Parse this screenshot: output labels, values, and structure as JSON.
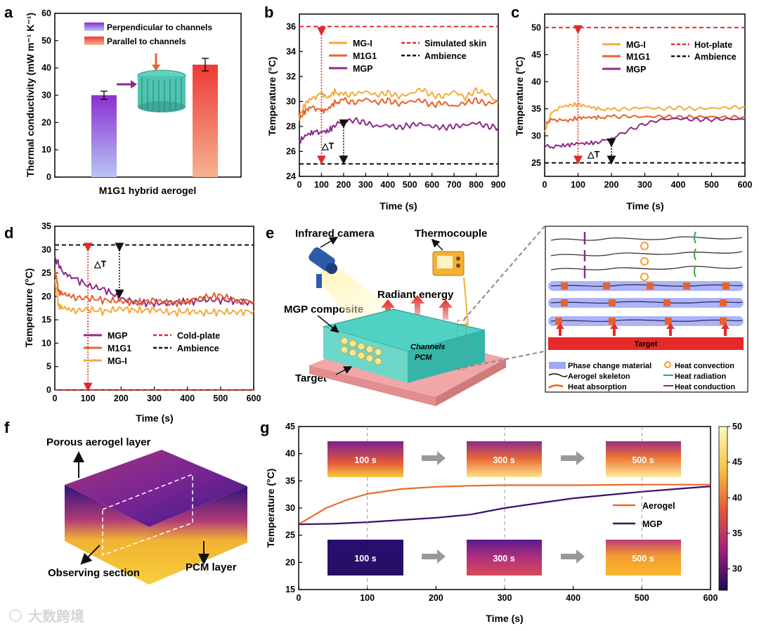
{
  "panels": [
    "a",
    "b",
    "c",
    "d",
    "e",
    "f",
    "g"
  ],
  "colors": {
    "mgi": "#f5a93a",
    "m1g1": "#e8622a",
    "mgp": "#8a2c8c",
    "red": "#e32a2a",
    "black": "#111111",
    "aerogel": "#ec6a2c",
    "mgp_g": "#3a0f6b"
  },
  "chart_data": [
    {
      "panel": "a",
      "type": "bar",
      "categories": [
        "Perpendicular to channels",
        "Parallel to channels"
      ],
      "values": [
        30.0,
        41.2
      ],
      "errors": [
        1.5,
        2.3
      ],
      "title": "",
      "xlabel": "M1G1 hybrid aerogel",
      "ylabel": "Thermal conductivity (mW m⁻¹ K⁻¹)",
      "ylim": [
        0,
        60
      ],
      "yticks": [
        0,
        10,
        20,
        30,
        40,
        50,
        60
      ],
      "legend": [
        "Perpendicular to channels",
        "Parallel to channels"
      ]
    },
    {
      "panel": "b",
      "type": "line",
      "xlabel": "Time (s)",
      "ylabel": "Temperature (°C)",
      "xlim": [
        0,
        900
      ],
      "ylim": [
        24,
        37
      ],
      "xticks": [
        0,
        100,
        200,
        300,
        400,
        500,
        600,
        700,
        800,
        900
      ],
      "yticks": [
        24,
        26,
        28,
        30,
        32,
        34,
        36
      ],
      "series": [
        {
          "name": "MG-I",
          "key": "mgi",
          "x": [
            0,
            30,
            60,
            100,
            130,
            160,
            200,
            250,
            300,
            350,
            400,
            450,
            500,
            550,
            600,
            650,
            700,
            750,
            800,
            850,
            900
          ],
          "y": [
            28.8,
            29.9,
            30.3,
            30.6,
            30.3,
            30.8,
            30.5,
            30.6,
            30.8,
            30.5,
            30.7,
            30.4,
            30.6,
            31.0,
            30.5,
            30.4,
            30.8,
            30.3,
            30.9,
            30.6,
            29.9
          ]
        },
        {
          "name": "M1G1",
          "key": "m1g1",
          "x": [
            0,
            30,
            60,
            100,
            130,
            160,
            200,
            250,
            300,
            350,
            400,
            450,
            500,
            550,
            600,
            650,
            700,
            750,
            800,
            850,
            900
          ],
          "y": [
            28.6,
            29.3,
            29.6,
            29.2,
            29.4,
            29.9,
            30.1,
            29.9,
            30.2,
            29.9,
            30.1,
            29.8,
            30.0,
            30.1,
            29.7,
            29.9,
            29.6,
            29.9,
            30.1,
            29.8,
            30.0
          ]
        },
        {
          "name": "MGP",
          "key": "mgp",
          "x": [
            0,
            30,
            60,
            100,
            130,
            160,
            200,
            250,
            300,
            350,
            400,
            450,
            500,
            550,
            600,
            650,
            700,
            750,
            800,
            850,
            900
          ],
          "y": [
            26.8,
            27.3,
            27.5,
            27.6,
            27.6,
            28.1,
            28.4,
            28.5,
            28.3,
            28.0,
            28.1,
            27.9,
            28.1,
            28.2,
            28.0,
            27.9,
            28.0,
            28.1,
            28.3,
            28.0,
            27.9
          ]
        }
      ],
      "hlines": [
        {
          "name": "Simulated skin",
          "y": 36,
          "style": "red-dash"
        },
        {
          "name": "Ambience",
          "y": 25,
          "style": "black-dash"
        }
      ],
      "annotation": "△T"
    },
    {
      "panel": "c",
      "type": "line",
      "xlabel": "Time (s)",
      "ylabel": "Temperature (°C)",
      "xlim": [
        0,
        600
      ],
      "ylim": [
        22.5,
        52.5
      ],
      "xticks": [
        0,
        100,
        200,
        300,
        400,
        500,
        600
      ],
      "yticks": [
        25,
        30,
        35,
        40,
        45,
        50
      ],
      "series": [
        {
          "name": "MG-I",
          "key": "mgi",
          "x": [
            0,
            20,
            40,
            70,
            100,
            130,
            160,
            200,
            250,
            300,
            350,
            400,
            450,
            500,
            550,
            600
          ],
          "y": [
            31.0,
            34.0,
            35.2,
            35.6,
            35.8,
            35.4,
            35.0,
            34.8,
            35.0,
            35.2,
            35.0,
            35.2,
            35.0,
            35.1,
            35.2,
            35.4
          ]
        },
        {
          "name": "M1G1",
          "key": "m1g1",
          "x": [
            0,
            20,
            40,
            70,
            100,
            130,
            160,
            200,
            250,
            300,
            350,
            400,
            450,
            500,
            550,
            600
          ],
          "y": [
            32.5,
            32.8,
            33.0,
            32.8,
            33.3,
            33.4,
            33.4,
            33.5,
            33.6,
            33.5,
            33.6,
            33.4,
            33.5,
            33.5,
            33.4,
            33.5
          ]
        },
        {
          "name": "MGP",
          "key": "mgp",
          "x": [
            0,
            20,
            40,
            70,
            100,
            130,
            160,
            200,
            250,
            300,
            350,
            400,
            450,
            500,
            550,
            600
          ],
          "y": [
            28.0,
            28.0,
            28.1,
            28.3,
            28.6,
            28.6,
            28.8,
            29.5,
            31.0,
            32.2,
            33.0,
            33.2,
            33.0,
            33.0,
            33.1,
            33.0
          ]
        }
      ],
      "hlines": [
        {
          "name": "Hot-plate",
          "y": 50,
          "style": "red-dash"
        },
        {
          "name": "Ambience",
          "y": 25,
          "style": "black-dash"
        }
      ],
      "annotation": "△T"
    },
    {
      "panel": "d",
      "type": "line",
      "xlabel": "Time (s)",
      "ylabel": "Temperature (°C)",
      "xlim": [
        0,
        600
      ],
      "ylim": [
        0,
        35
      ],
      "xticks": [
        0,
        100,
        200,
        300,
        400,
        500,
        600
      ],
      "yticks": [
        0,
        5,
        10,
        15,
        20,
        25,
        30,
        35
      ],
      "series": [
        {
          "name": "MGP",
          "key": "mgp",
          "x": [
            0,
            20,
            50,
            100,
            150,
            200,
            250,
            300,
            350,
            400,
            450,
            500,
            550,
            600
          ],
          "y": [
            28.3,
            25.8,
            24.3,
            22.3,
            21.5,
            19.5,
            18.7,
            18.5,
            18.7,
            18.8,
            19.3,
            19.2,
            19.0,
            18.5
          ]
        },
        {
          "name": "M1G1",
          "key": "m1g1",
          "x": [
            0,
            10,
            20,
            50,
            100,
            150,
            200,
            250,
            300,
            350,
            400,
            450,
            500,
            550,
            600
          ],
          "y": [
            26.0,
            21.5,
            20.2,
            19.8,
            19.6,
            19.2,
            19.0,
            18.6,
            19.2,
            18.5,
            18.9,
            19.8,
            20.2,
            19.0,
            19.0
          ]
        },
        {
          "name": "MG-I",
          "key": "mgi",
          "x": [
            0,
            10,
            20,
            50,
            100,
            150,
            200,
            250,
            300,
            350,
            400,
            450,
            500,
            550,
            600
          ],
          "y": [
            24.0,
            18.5,
            17.2,
            16.9,
            17.2,
            16.8,
            17.4,
            17.0,
            17.2,
            16.5,
            16.8,
            16.5,
            16.7,
            16.6,
            16.9
          ]
        }
      ],
      "hlines": [
        {
          "name": "Cold-plate",
          "y": 0,
          "style": "red-dash"
        },
        {
          "name": "Ambience",
          "y": 31,
          "style": "black-dash"
        }
      ],
      "annotation": "△T"
    },
    {
      "panel": "g",
      "type": "line",
      "xlabel": "Time (s)",
      "ylabel": "Temperature (°C)",
      "xlim": [
        0,
        600
      ],
      "ylim": [
        15,
        45
      ],
      "xticks": [
        0,
        100,
        200,
        300,
        400,
        500,
        600
      ],
      "yticks": [
        15,
        20,
        25,
        30,
        35,
        40,
        45
      ],
      "series": [
        {
          "name": "Aerogel",
          "key": "aerogel",
          "x": [
            0,
            20,
            40,
            70,
            100,
            150,
            200,
            250,
            300,
            400,
            500,
            600
          ],
          "y": [
            27.0,
            28.5,
            30.0,
            31.5,
            32.6,
            33.5,
            33.9,
            34.1,
            34.2,
            34.2,
            34.3,
            34.3
          ]
        },
        {
          "name": "MGP",
          "key": "mgp_g",
          "x": [
            0,
            50,
            100,
            150,
            200,
            250,
            300,
            350,
            400,
            450,
            500,
            550,
            600
          ],
          "y": [
            27.0,
            27.1,
            27.4,
            27.8,
            28.2,
            28.8,
            30.0,
            30.9,
            31.8,
            32.4,
            33.0,
            33.5,
            34.0
          ]
        }
      ],
      "colorbar": {
        "min": 27,
        "max": 50,
        "ticks": [
          30,
          35,
          40,
          45,
          50
        ]
      },
      "insets_top": [
        "100 s",
        "300 s",
        "500 s"
      ],
      "insets_bottom": [
        "100 s",
        "300 s",
        "500 s"
      ]
    }
  ],
  "schematic_e": {
    "labels": {
      "camera": "Infrared camera",
      "thermocouple": "Thermocouple",
      "radiant": "Radiant energy",
      "composite": "MGP composite",
      "channels": "Channels",
      "pcm": "PCM",
      "target": "Target"
    },
    "zoom_target": "Target",
    "legend": [
      "Phase change material",
      "Heat convection",
      "Aerogel skeleton",
      "Heat radiation",
      "Heat absorption",
      "Heat conduction"
    ]
  },
  "schematic_f": {
    "labels": {
      "porous": "Porous aerogel layer",
      "observing": "Observing section",
      "pcm": "PCM layer"
    }
  },
  "watermark": "大数跨境"
}
